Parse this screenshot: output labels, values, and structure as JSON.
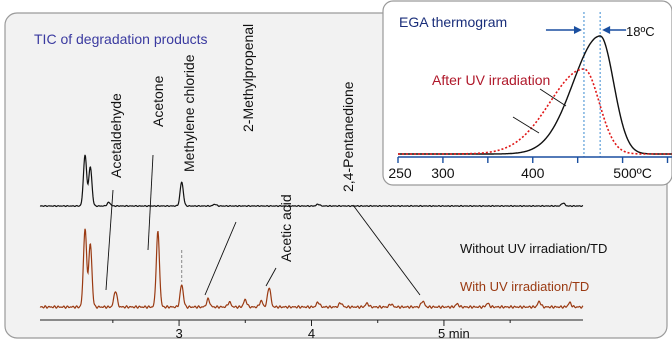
{
  "colors": {
    "trace_without": "#111111",
    "trace_with": "#9a3a12",
    "tic_title": "#3a3aa0",
    "ega_title": "#1a2e7a",
    "uv_label": "#b0182a",
    "uv_curve": "#e01818",
    "arrow": "#1a4fa0",
    "marker_line": "#3a8ad0",
    "panel_fill": "#f2f2f2",
    "panel_border": "#9a9a9a"
  },
  "chart_data": [
    {
      "type": "line",
      "title": "TIC of degradation products",
      "xlabel": "",
      "ylabel": "",
      "x_ticks": [
        3,
        4,
        5
      ],
      "x_tick_labels": [
        "3",
        "4",
        "5 min"
      ],
      "xlim": [
        1.95,
        6.05
      ],
      "peak_labels": [
        "Acetaldehyde",
        "Acetone",
        "Methylene chloride",
        "2-Methylpropenal",
        "Acetic acid",
        "2,4-Pentanedione"
      ],
      "series": [
        {
          "name": "Without UV irradiation/TD",
          "peaks": [
            {
              "x": 2.29,
              "h": 0.85
            },
            {
              "x": 2.33,
              "h": 0.65
            },
            {
              "x": 2.47,
              "h": 0.06
            },
            {
              "x": 3.02,
              "h": 0.4
            },
            {
              "x": 3.27,
              "h": 0.03
            },
            {
              "x": 4.05,
              "h": 0.03
            },
            {
              "x": 5.9,
              "h": 0.05
            }
          ]
        },
        {
          "name": "With UV irradiation/TD",
          "peaks": [
            {
              "x": 2.29,
              "h": 1.3
            },
            {
              "x": 2.33,
              "h": 1.05
            },
            {
              "x": 2.52,
              "h": 0.27
            },
            {
              "x": 2.84,
              "h": 1.25
            },
            {
              "x": 3.02,
              "h": 0.37
            },
            {
              "x": 3.22,
              "h": 0.13
            },
            {
              "x": 3.38,
              "h": 0.08
            },
            {
              "x": 3.5,
              "h": 0.12
            },
            {
              "x": 3.62,
              "h": 0.1
            },
            {
              "x": 3.68,
              "h": 0.33
            },
            {
              "x": 4.05,
              "h": 0.08
            },
            {
              "x": 4.22,
              "h": 0.07
            },
            {
              "x": 4.42,
              "h": 0.06
            },
            {
              "x": 4.6,
              "h": 0.05
            },
            {
              "x": 4.84,
              "h": 0.1
            },
            {
              "x": 5.1,
              "h": 0.05
            },
            {
              "x": 5.33,
              "h": 0.06
            },
            {
              "x": 5.72,
              "h": 0.09
            },
            {
              "x": 5.95,
              "h": 0.07
            }
          ]
        }
      ]
    },
    {
      "type": "line",
      "title": "EGA thermogram",
      "x_ticks": [
        250,
        300,
        400,
        500
      ],
      "x_tick_labels": [
        "250",
        "300",
        "400",
        "500ºC"
      ],
      "xlim": [
        250,
        555
      ],
      "shift_label": "18ºC",
      "series": [
        {
          "name": "",
          "peak_x": 475,
          "peak_h": 1.0,
          "width_left": 30,
          "width_right": 15
        },
        {
          "name": "After UV irradiation",
          "peak_x": 457,
          "peak_h": 0.72,
          "width_left": 38,
          "width_right": 17
        }
      ]
    }
  ]
}
